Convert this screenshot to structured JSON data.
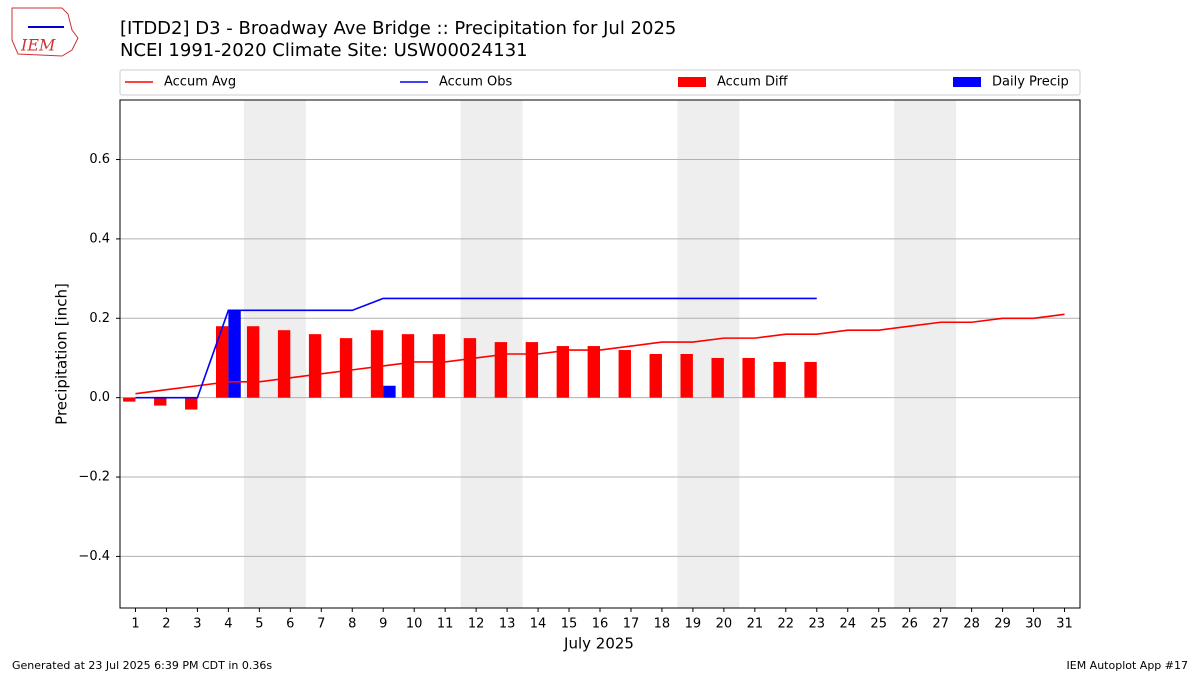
{
  "logo_text": "IEM",
  "footer_left": "Generated at 23 Jul 2025 6:39 PM CDT in 0.36s",
  "footer_right": "IEM Autoplot App #17",
  "chart_data": {
    "type": "bar",
    "title": "[ITDD2] D3 - Broadway Ave Bridge  :: Precipitation for Jul 2025",
    "subtitle": "NCEI 1991-2020 Climate Site: USW00024131",
    "x_label": "July 2025",
    "y_label": "Precipitation [inch]",
    "x": [
      1,
      2,
      3,
      4,
      5,
      6,
      7,
      8,
      9,
      10,
      11,
      12,
      13,
      14,
      15,
      16,
      17,
      18,
      19,
      20,
      21,
      22,
      23,
      24,
      25,
      26,
      27,
      28,
      29,
      30,
      31
    ],
    "xlim": [
      0.5,
      31.5
    ],
    "xticks": [
      1,
      2,
      3,
      4,
      5,
      6,
      7,
      8,
      9,
      10,
      11,
      12,
      13,
      14,
      15,
      16,
      17,
      18,
      19,
      20,
      21,
      22,
      23,
      24,
      25,
      26,
      27,
      28,
      29,
      30,
      31
    ],
    "ylim": [
      -0.53,
      0.75
    ],
    "yticks": [
      {
        "value": -0.4,
        "label": "−0.4"
      },
      {
        "value": -0.2,
        "label": "−0.2"
      },
      {
        "value": 0,
        "label": "0.0"
      },
      0.2,
      0.4,
      0.6
    ],
    "grid": true,
    "legend": "top",
    "shaded_spans": [
      [
        4.5,
        6.5
      ],
      [
        11.5,
        13.5
      ],
      [
        18.5,
        20.5
      ],
      [
        25.5,
        27.5
      ]
    ],
    "shade_color": "#eeeeee",
    "series": [
      {
        "name": "Accum Avg",
        "kind": "line",
        "color": "#ff0000",
        "values": [
          0.01,
          0.02,
          0.03,
          0.04,
          0.04,
          0.05,
          0.06,
          0.07,
          0.08,
          0.09,
          0.09,
          0.1,
          0.11,
          0.11,
          0.12,
          0.12,
          0.13,
          0.14,
          0.14,
          0.15,
          0.15,
          0.16,
          0.16,
          0.17,
          0.17,
          0.18,
          0.19,
          0.19,
          0.2,
          0.2,
          0.21
        ]
      },
      {
        "name": "Accum Obs",
        "kind": "line",
        "color": "#0000ff",
        "values": [
          0,
          0,
          0,
          0.22,
          0.22,
          0.22,
          0.22,
          0.22,
          0.25,
          0.25,
          0.25,
          0.25,
          0.25,
          0.25,
          0.25,
          0.25,
          0.25,
          0.25,
          0.25,
          0.25,
          0.25,
          0.25,
          0.25,
          null,
          null,
          null,
          null,
          null,
          null,
          null,
          null
        ]
      },
      {
        "name": "Accum Diff",
        "kind": "bar",
        "color": "#ff0000",
        "offset": -0.2,
        "values": [
          -0.01,
          -0.02,
          -0.03,
          0.18,
          0.18,
          0.17,
          0.16,
          0.15,
          0.17,
          0.16,
          0.16,
          0.15,
          0.14,
          0.14,
          0.13,
          0.13,
          0.12,
          0.11,
          0.11,
          0.1,
          0.1,
          0.09,
          0.09,
          null,
          null,
          null,
          null,
          null,
          null,
          null,
          null
        ]
      },
      {
        "name": "Daily Precip",
        "kind": "bar",
        "color": "#0000ff",
        "offset": 0.2,
        "values": [
          0,
          0,
          0,
          0.22,
          0,
          0,
          0,
          0,
          0.03,
          0,
          0,
          0,
          0,
          0,
          0,
          0,
          0,
          0,
          0,
          0,
          0,
          0,
          0,
          null,
          null,
          null,
          null,
          null,
          null,
          null,
          null
        ]
      }
    ]
  }
}
